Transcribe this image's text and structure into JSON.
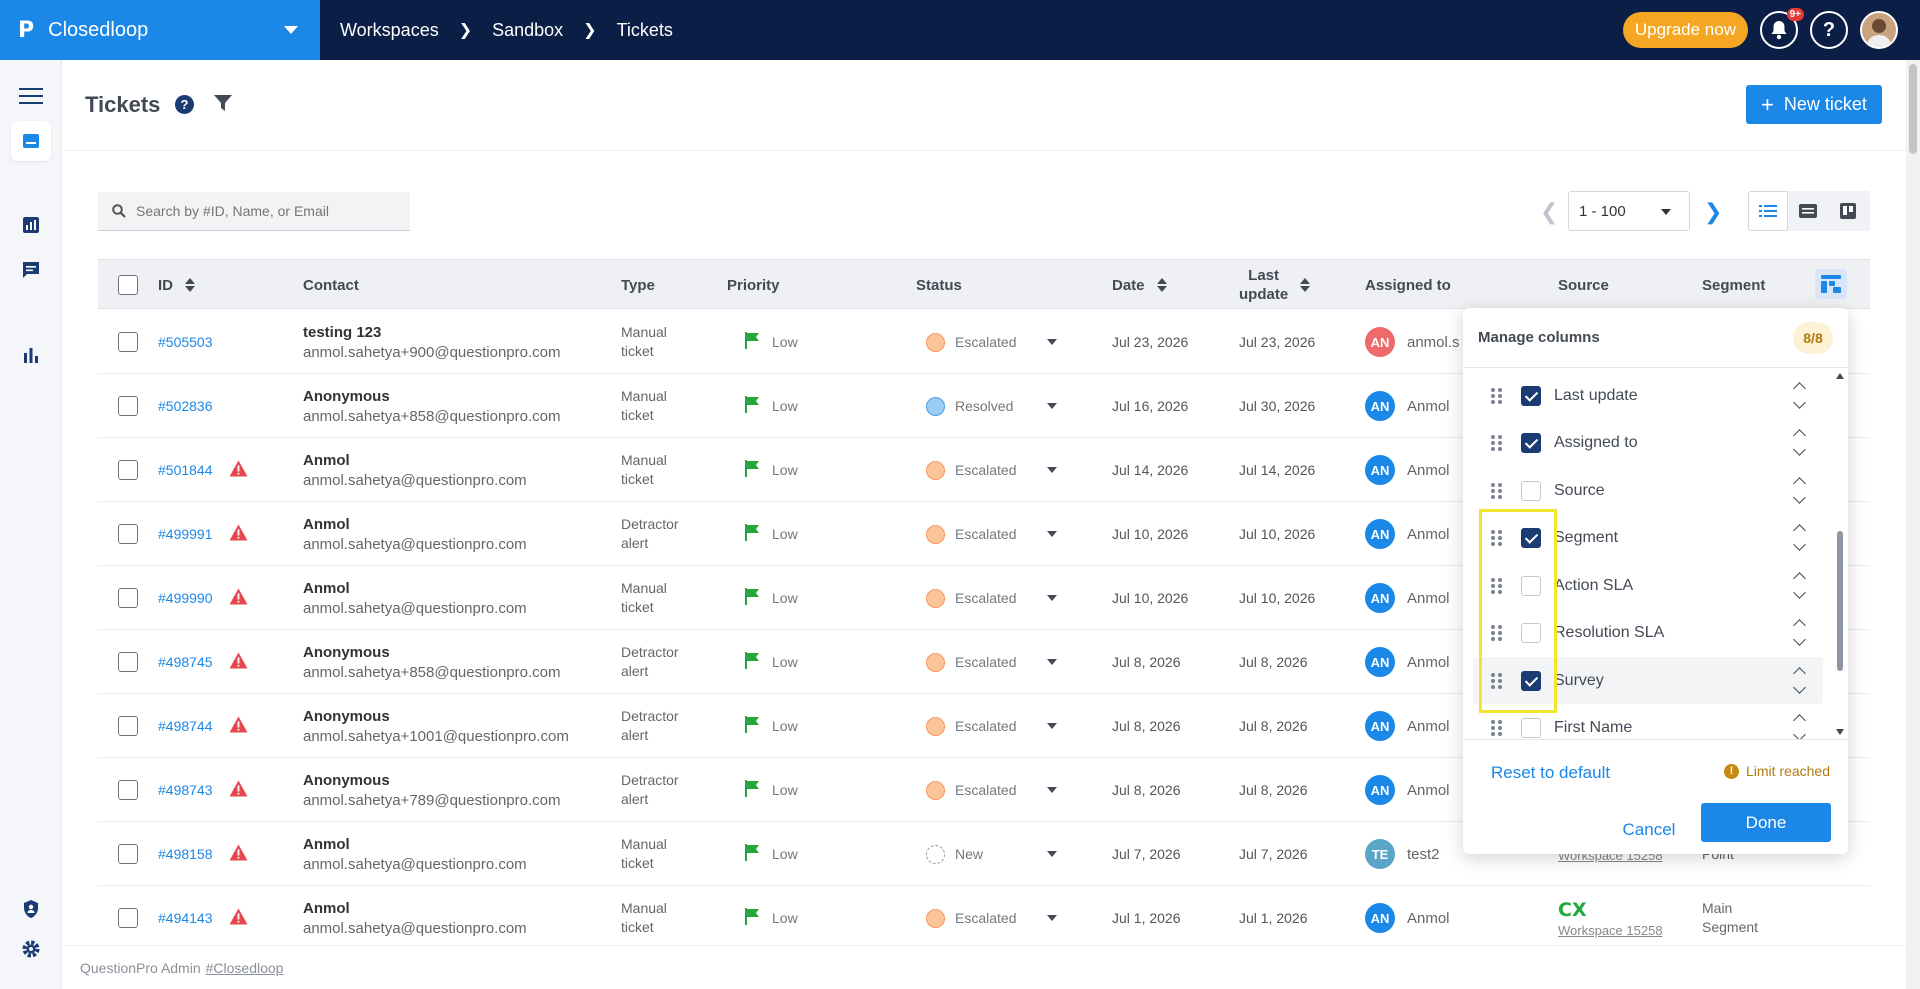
{
  "topbar": {
    "brand_logo": "P",
    "brand_name": "Closedloop",
    "breadcrumbs": [
      "Workspaces",
      "Sandbox",
      "Tickets"
    ],
    "upgrade_label": "Upgrade now",
    "notification_badge": "9+",
    "help_label": "?"
  },
  "page": {
    "title": "Tickets",
    "help_label": "?",
    "new_ticket_label": "New ticket"
  },
  "search": {
    "placeholder": "Search by #ID, Name, or Email"
  },
  "pager": {
    "range": "1 - 100"
  },
  "table": {
    "headers": {
      "id": "ID",
      "contact": "Contact",
      "type": "Type",
      "priority": "Priority",
      "status": "Status",
      "date": "Date",
      "last_update_1": "Last",
      "last_update_2": "update",
      "assigned_to": "Assigned to",
      "source": "Source",
      "segment": "Segment"
    },
    "rows": [
      {
        "id": "#505503",
        "warn": false,
        "name": "testing 123",
        "email": "anmol.sahetya+900@questionpro.com",
        "type1": "Manual",
        "type2": "ticket",
        "priority": "Low",
        "status": "Escalated",
        "status_kind": "esc",
        "date": "Jul 23, 2026",
        "updated": "Jul 23, 2026",
        "av": "AN",
        "av_kind": "red",
        "assignee": "anmol.s"
      },
      {
        "id": "#502836",
        "warn": false,
        "name": "Anonymous",
        "email": "anmol.sahetya+858@questionpro.com",
        "type1": "Manual",
        "type2": "ticket",
        "priority": "Low",
        "status": "Resolved",
        "status_kind": "res",
        "date": "Jul 16, 2026",
        "updated": "Jul 30, 2026",
        "av": "AN",
        "av_kind": "blue",
        "assignee": "Anmol"
      },
      {
        "id": "#501844",
        "warn": true,
        "name": "Anmol",
        "email": "anmol.sahetya@questionpro.com",
        "type1": "Manual",
        "type2": "ticket",
        "priority": "Low",
        "status": "Escalated",
        "status_kind": "esc",
        "date": "Jul 14, 2026",
        "updated": "Jul 14, 2026",
        "av": "AN",
        "av_kind": "blue",
        "assignee": "Anmol"
      },
      {
        "id": "#499991",
        "warn": true,
        "name": "Anmol",
        "email": "anmol.sahetya@questionpro.com",
        "type1": "Detractor",
        "type2": "alert",
        "priority": "Low",
        "status": "Escalated",
        "status_kind": "esc",
        "date": "Jul 10, 2026",
        "updated": "Jul 10, 2026",
        "av": "AN",
        "av_kind": "blue",
        "assignee": "Anmol"
      },
      {
        "id": "#499990",
        "warn": true,
        "name": "Anmol",
        "email": "anmol.sahetya@questionpro.com",
        "type1": "Manual",
        "type2": "ticket",
        "priority": "Low",
        "status": "Escalated",
        "status_kind": "esc",
        "date": "Jul 10, 2026",
        "updated": "Jul 10, 2026",
        "av": "AN",
        "av_kind": "blue",
        "assignee": "Anmol"
      },
      {
        "id": "#498745",
        "warn": true,
        "name": "Anonymous",
        "email": "anmol.sahetya+858@questionpro.com",
        "type1": "Detractor",
        "type2": "alert",
        "priority": "Low",
        "status": "Escalated",
        "status_kind": "esc",
        "date": "Jul 8, 2026",
        "updated": "Jul 8, 2026",
        "av": "AN",
        "av_kind": "blue",
        "assignee": "Anmol"
      },
      {
        "id": "#498744",
        "warn": true,
        "name": "Anonymous",
        "email": "anmol.sahetya+1001@questionpro.com",
        "type1": "Detractor",
        "type2": "alert",
        "priority": "Low",
        "status": "Escalated",
        "status_kind": "esc",
        "date": "Jul 8, 2026",
        "updated": "Jul 8, 2026",
        "av": "AN",
        "av_kind": "blue",
        "assignee": "Anmol"
      },
      {
        "id": "#498743",
        "warn": true,
        "name": "Anonymous",
        "email": "anmol.sahetya+789@questionpro.com",
        "type1": "Detractor",
        "type2": "alert",
        "priority": "Low",
        "status": "Escalated",
        "status_kind": "esc",
        "date": "Jul 8, 2026",
        "updated": "Jul 8, 2026",
        "av": "AN",
        "av_kind": "blue",
        "assignee": "Anmol"
      },
      {
        "id": "#498158",
        "warn": true,
        "name": "Anmol",
        "email": "anmol.sahetya@questionpro.com",
        "type1": "Manual",
        "type2": "ticket",
        "priority": "Low",
        "status": "New",
        "status_kind": "new",
        "date": "Jul 7, 2026",
        "updated": "Jul 7, 2026",
        "av": "TE",
        "av_kind": "teal",
        "assignee": "test2",
        "source_ws": "Workspace 15258",
        "segment1": "Point",
        "segment2": ""
      },
      {
        "id": "#494143",
        "warn": true,
        "name": "Anmol",
        "email": "anmol.sahetya@questionpro.com",
        "type1": "Manual",
        "type2": "ticket",
        "priority": "Low",
        "status": "Escalated",
        "status_kind": "esc",
        "date": "Jul 1, 2026",
        "updated": "Jul 1, 2026",
        "av": "AN",
        "av_kind": "blue",
        "assignee": "Anmol",
        "source_cx": "CX",
        "source_ws": "Workspace 15258",
        "segment1": "Main",
        "segment2": "Segment"
      }
    ]
  },
  "manage_columns": {
    "title": "Manage columns",
    "count": "8/8",
    "items": [
      {
        "label": "Last update",
        "checked": true
      },
      {
        "label": "Assigned to",
        "checked": true
      },
      {
        "label": "Source",
        "checked": false
      },
      {
        "label": "Segment",
        "checked": true
      },
      {
        "label": "Action SLA",
        "checked": false
      },
      {
        "label": "Resolution SLA",
        "checked": false
      },
      {
        "label": "Survey",
        "checked": true
      },
      {
        "label": "First Name",
        "checked": false
      }
    ],
    "reset_label": "Reset to default",
    "limit_label": "Limit reached",
    "cancel_label": "Cancel",
    "done_label": "Done"
  },
  "footer": {
    "prefix": "QuestionPro Admin",
    "link": "#Closedloop"
  },
  "colors": {
    "primary": "#1b87e6",
    "navbar": "#0b1e45",
    "upgrade": "#f5a623",
    "highlight": "#f2e52c"
  }
}
